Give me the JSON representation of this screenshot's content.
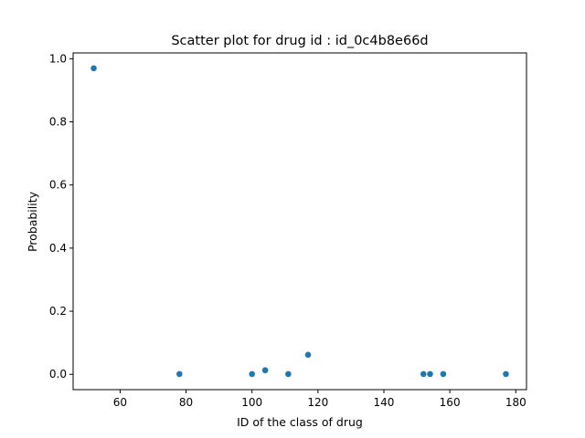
{
  "chart_data": {
    "type": "scatter",
    "title": "Scatter plot for drug id : id_0c4b8e66d",
    "xlabel": "ID of the class of drug",
    "ylabel": "Probability",
    "xlim": [
      45.75,
      183.25
    ],
    "ylim": [
      -0.0485,
      1.0185
    ],
    "xticks": [
      60,
      80,
      100,
      120,
      140,
      160,
      180
    ],
    "yticks": [
      0.0,
      0.2,
      0.4,
      0.6,
      0.8,
      1.0
    ],
    "xtick_labels": [
      "60",
      "80",
      "100",
      "120",
      "140",
      "160",
      "180"
    ],
    "ytick_labels": [
      "0.0",
      "0.2",
      "0.4",
      "0.6",
      "0.8",
      "1.0"
    ],
    "grid": false,
    "legend": "none",
    "marker_color": "#1f77b4",
    "points": [
      {
        "x": 52,
        "y": 0.97
      },
      {
        "x": 78,
        "y": 0.001
      },
      {
        "x": 100,
        "y": 0.001
      },
      {
        "x": 104,
        "y": 0.013
      },
      {
        "x": 111,
        "y": 0.001
      },
      {
        "x": 117,
        "y": 0.062
      },
      {
        "x": 152,
        "y": 0.001
      },
      {
        "x": 154,
        "y": 0.001
      },
      {
        "x": 158,
        "y": 0.001
      },
      {
        "x": 177,
        "y": 0.001
      }
    ]
  }
}
